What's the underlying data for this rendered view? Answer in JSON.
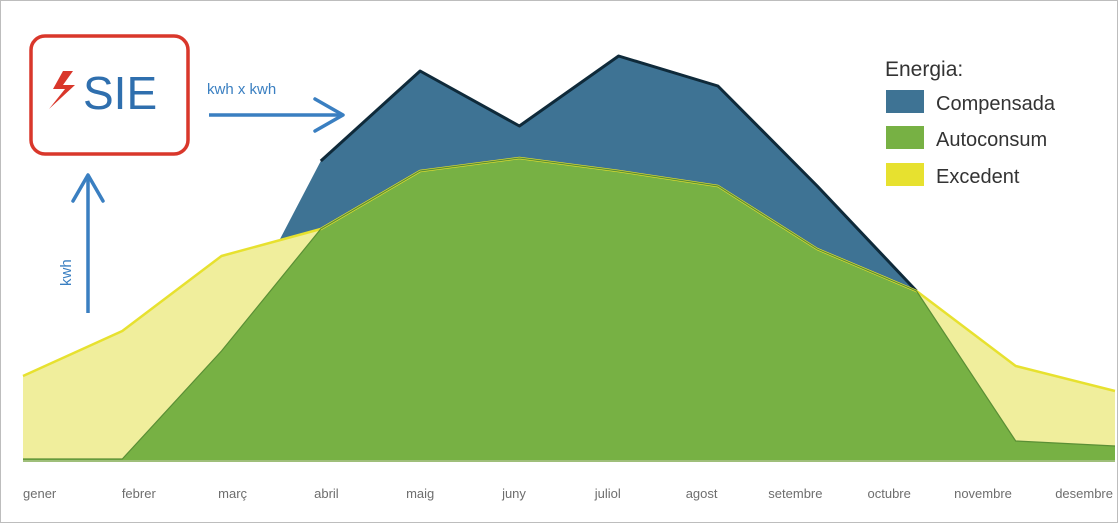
{
  "logo": {
    "text": "SIE",
    "icon": "s-bolt-logo-icon",
    "frame_color": "#d9372b",
    "text_color": "#2f6fae"
  },
  "annotations": {
    "horizontal_arrow_label": "kwh x kwh",
    "vertical_arrow_label": "kwh",
    "arrow_color": "#3a7fc1"
  },
  "chart_data": {
    "type": "area",
    "categories": [
      "gener",
      "febrer",
      "març",
      "abril",
      "maig",
      "juny",
      "juliol",
      "agost",
      "setembre",
      "octubre",
      "novembre",
      "desembre"
    ],
    "series": [
      {
        "name": "Excedent",
        "color": "#f0ee9c",
        "line_color": "#e7e12f",
        "values": [
          85,
          130,
          205,
          232,
          290,
          303,
          290,
          275,
          212,
          170,
          95,
          70
        ]
      },
      {
        "name": "Autoconsum",
        "color": "#77b144",
        "values": [
          2,
          2,
          110,
          232,
          290,
          303,
          290,
          275,
          212,
          170,
          20,
          15
        ]
      },
      {
        "name": "Compensada",
        "color": "#3e7394",
        "values": [
          2,
          2,
          110,
          300,
          390,
          335,
          405,
          375,
          275,
          170,
          20,
          15
        ]
      }
    ],
    "legend": {
      "title": "Energia:",
      "position": "top-right"
    },
    "xlabel": "",
    "ylabel": "",
    "ylim": [
      0,
      440
    ],
    "grid": false,
    "axes_visible": false
  }
}
